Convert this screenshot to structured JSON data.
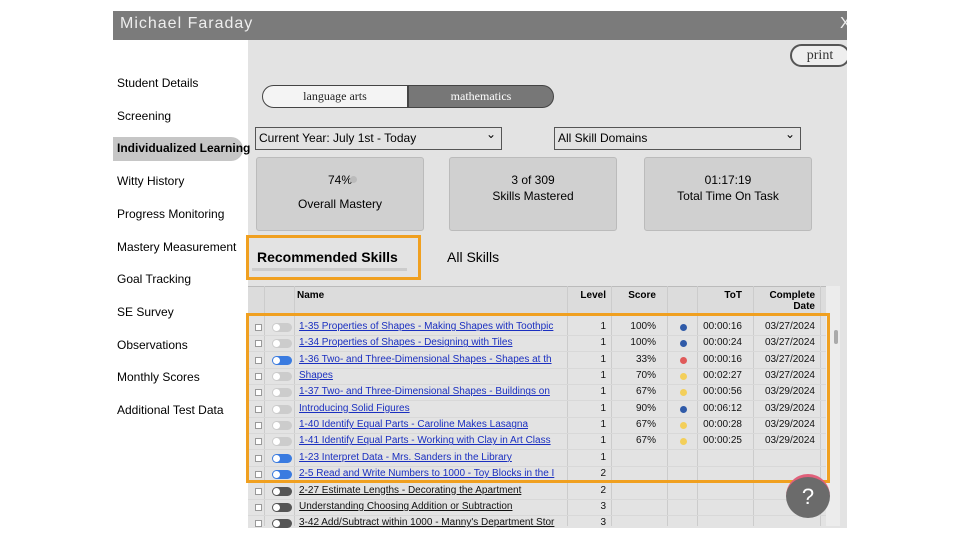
{
  "header": {
    "title": "Michael Faraday",
    "close": "X"
  },
  "sidebar": {
    "active": 2,
    "items": [
      "Student Details",
      "Screening",
      "Individualized Learning",
      "Witty History",
      "Progress Monitoring",
      "Mastery Measurement",
      "Goal Tracking",
      "SE Survey",
      "Observations",
      "Monthly Scores",
      "Additional Test Data"
    ]
  },
  "print": "print",
  "subject_tabs": {
    "active": 1,
    "items": [
      "language arts",
      "mathematics"
    ]
  },
  "filters": {
    "year": "Current Year: July 1st - Today",
    "domain": "All Skill Domains"
  },
  "stats": [
    {
      "value": "74%",
      "label": "Overall Mastery"
    },
    {
      "value": "3 of 309",
      "label": "Skills Mastered"
    },
    {
      "value": "01:17:19",
      "label": "Total Time On Task"
    }
  ],
  "skill_tabs": {
    "active": 0,
    "items": [
      "Recommended Skills",
      "All Skills"
    ]
  },
  "table": {
    "columns": [
      "Name",
      "Level",
      "Score",
      "ToT",
      "Complete Date"
    ],
    "rows": [
      {
        "toggle": "off",
        "name": "1-35 Properties of Shapes - Making Shapes with Toothpic",
        "level": "1",
        "score": "100%",
        "dot": "#2f5aa8",
        "tot": "00:00:16",
        "date": "03/27/2024"
      },
      {
        "toggle": "off",
        "name": "1-34 Properties of Shapes - Designing with Tiles",
        "level": "1",
        "score": "100%",
        "dot": "#2f5aa8",
        "tot": "00:00:24",
        "date": "03/27/2024"
      },
      {
        "toggle": "on",
        "name": "1-36 Two- and Three-Dimensional Shapes - Shapes at th",
        "level": "1",
        "score": "33%",
        "dot": "#e05a5a",
        "tot": "00:00:16",
        "date": "03/27/2024"
      },
      {
        "toggle": "off",
        "name": "Shapes",
        "level": "1",
        "score": "70%",
        "dot": "#f3cf5a",
        "tot": "00:02:27",
        "date": "03/27/2024"
      },
      {
        "toggle": "off",
        "name": "1-37 Two- and Three-Dimensional Shapes - Buildings on",
        "level": "1",
        "score": "67%",
        "dot": "#f3cf5a",
        "tot": "00:00:56",
        "date": "03/29/2024"
      },
      {
        "toggle": "off",
        "name": "Introducing Solid Figures",
        "level": "1",
        "score": "90%",
        "dot": "#2f5aa8",
        "tot": "00:06:12",
        "date": "03/29/2024"
      },
      {
        "toggle": "off",
        "name": "1-40 Identify Equal Parts - Caroline Makes Lasagna",
        "level": "1",
        "score": "67%",
        "dot": "#f3cf5a",
        "tot": "00:00:28",
        "date": "03/29/2024"
      },
      {
        "toggle": "off",
        "name": "1-41 Identify Equal Parts - Working with Clay in Art Class",
        "level": "1",
        "score": "67%",
        "dot": "#f3cf5a",
        "tot": "00:00:25",
        "date": "03/29/2024"
      },
      {
        "toggle": "on",
        "name": "1-23 Interpret Data - Mrs. Sanders in the Library",
        "level": "1"
      },
      {
        "toggle": "on",
        "name": "2-5 Read and Write Numbers to 1000 - Toy Blocks in the I",
        "level": "2"
      },
      {
        "toggle": "dark",
        "name": "2-27 Estimate Lengths - Decorating the Apartment",
        "level": "2"
      },
      {
        "toggle": "dark",
        "name": "Understanding Choosing Addition or Subtraction",
        "level": "3"
      },
      {
        "toggle": "dark",
        "name": "3-42 Add/Subtract within 1000 - Manny's Department Stor",
        "level": "3"
      }
    ]
  },
  "help": "?"
}
